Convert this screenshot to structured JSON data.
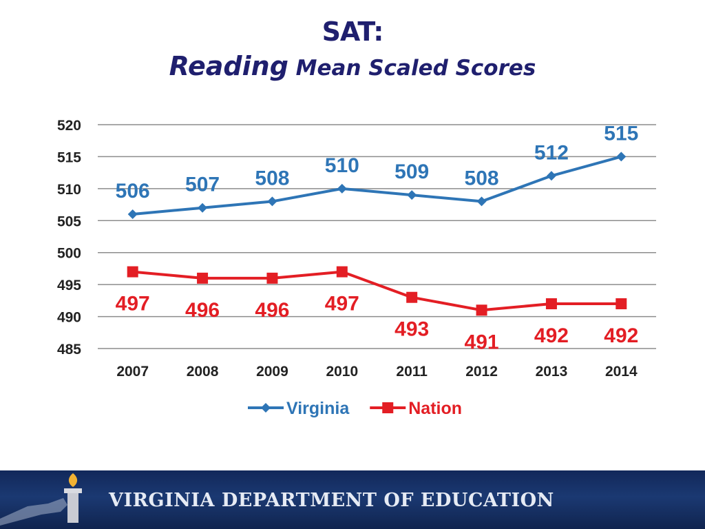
{
  "header": {
    "title": "SAT:",
    "subtitle_emphasis": "Reading",
    "subtitle_rest": " Mean Scaled Scores"
  },
  "chart_data": {
    "type": "line",
    "categories": [
      "2007",
      "2008",
      "2009",
      "2010",
      "2011",
      "2012",
      "2013",
      "2014"
    ],
    "series": [
      {
        "name": "Virginia",
        "values": [
          506,
          507,
          508,
          510,
          509,
          508,
          512,
          515
        ],
        "color": "#2e75b6",
        "marker": "diamond",
        "label_position": "above"
      },
      {
        "name": "Nation",
        "values": [
          497,
          496,
          496,
          497,
          493,
          491,
          492,
          492
        ],
        "color": "#e31e24",
        "marker": "square",
        "label_position": "below"
      }
    ],
    "yticks": [
      485,
      490,
      495,
      500,
      505,
      510,
      515,
      520
    ],
    "ylim": [
      485,
      520
    ],
    "grid": true,
    "legend_position": "bottom",
    "data_labels": true
  },
  "footer": {
    "text": "VIRGINIA DEPARTMENT OF EDUCATION",
    "background_color": "#1b3972"
  }
}
